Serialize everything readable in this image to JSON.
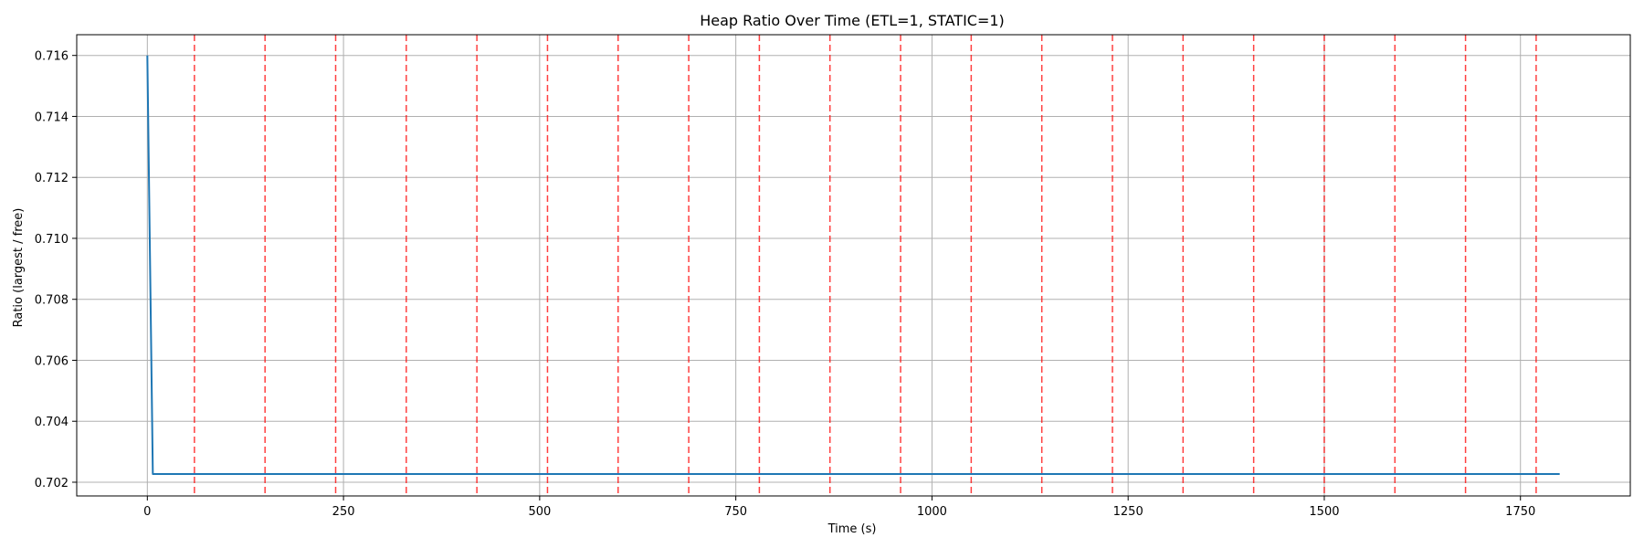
{
  "chart_data": {
    "type": "line",
    "title": "Heap Ratio Over Time (ETL=1, STATIC=1)",
    "xlabel": "Time (s)",
    "ylabel": "Ratio (largest / free)",
    "xlim": [
      -90,
      1890
    ],
    "ylim": [
      0.70155,
      0.71668
    ],
    "xticks": [
      0,
      250,
      500,
      750,
      1000,
      1250,
      1500,
      1750
    ],
    "xtick_labels": [
      "0",
      "250",
      "500",
      "750",
      "1000",
      "1250",
      "1500",
      "1750"
    ],
    "yticks": [
      0.702,
      0.704,
      0.706,
      0.708,
      0.71,
      0.712,
      0.714,
      0.716
    ],
    "ytick_labels": [
      "0.702",
      "0.704",
      "0.706",
      "0.708",
      "0.710",
      "0.712",
      "0.714",
      "0.716"
    ],
    "grid": true,
    "series": [
      {
        "color": "#1f77b4",
        "x": [
          0,
          7,
          1800
        ],
        "y": [
          0.716,
          0.70227,
          0.70227
        ]
      }
    ],
    "vertical_markers": {
      "color": "#ff0000",
      "style": "dashed",
      "x": [
        60,
        150,
        240,
        330,
        420,
        510,
        600,
        690,
        780,
        870,
        960,
        1050,
        1140,
        1230,
        1320,
        1410,
        1500,
        1590,
        1680,
        1770
      ]
    }
  }
}
